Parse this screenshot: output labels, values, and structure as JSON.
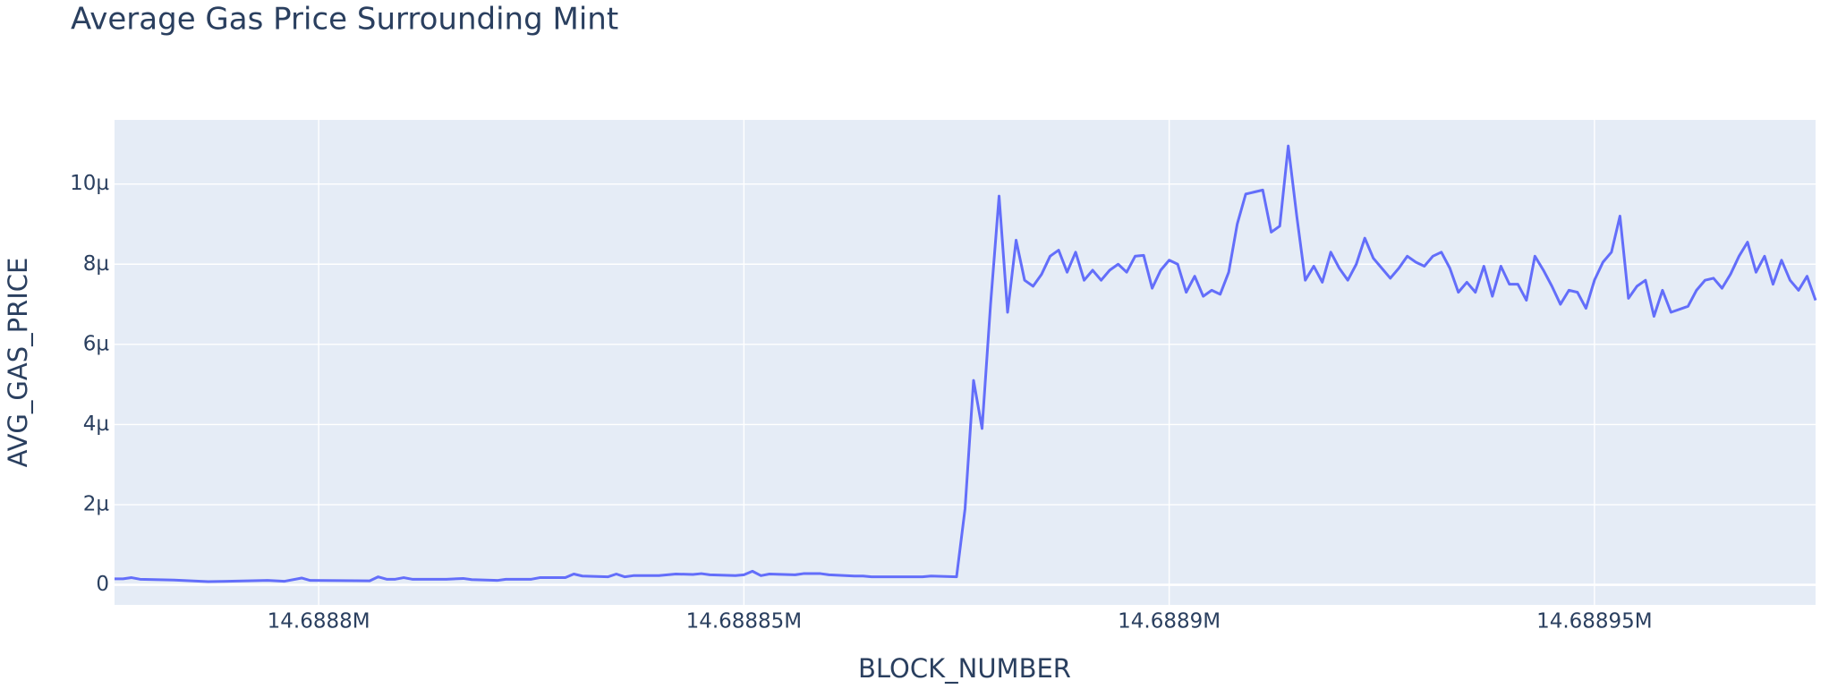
{
  "chart_data": {
    "type": "line",
    "title": "Average Gas Price Surrounding Mint",
    "x_label": "BLOCK_NUMBER",
    "y_label": "AVG_GAS_PRICE",
    "x": [
      14688776,
      14688777,
      14688778,
      14688779,
      14688783,
      14688787,
      14688794,
      14688796,
      14688798,
      14688799,
      14688806,
      14688807,
      14688808,
      14688809,
      14688810,
      14688811,
      14688815,
      14688817,
      14688818,
      14688821,
      14688822,
      14688825,
      14688826,
      14688829,
      14688830,
      14688831,
      14688834,
      14688835,
      14688836,
      14688837,
      14688840,
      14688842,
      14688844,
      14688845,
      14688846,
      14688849,
      14688850,
      14688851,
      14688852,
      14688853,
      14688856,
      14688857,
      14688859,
      14688860,
      14688863,
      14688864,
      14688865,
      14688866,
      14688871,
      14688872,
      14688875,
      14688876,
      14688877,
      14688878,
      14688879,
      14688880,
      14688881,
      14688882,
      14688883,
      14688884,
      14688885,
      14688886,
      14688887,
      14688888,
      14688889,
      14688890,
      14688891,
      14688892,
      14688893,
      14688894,
      14688895,
      14688896,
      14688897,
      14688898,
      14688899,
      14688900,
      14688901,
      14688902,
      14688903,
      14688904,
      14688905,
      14688906,
      14688907,
      14688908,
      14688909,
      14688910,
      14688911,
      14688912,
      14688913,
      14688914,
      14688915,
      14688916,
      14688917,
      14688918,
      14688919,
      14688920,
      14688921,
      14688922,
      14688923,
      14688924,
      14688925,
      14688926,
      14688927,
      14688928,
      14688929,
      14688930,
      14688931,
      14688932,
      14688933,
      14688934,
      14688935,
      14688936,
      14688937,
      14688938,
      14688939,
      14688940,
      14688941,
      14688942,
      14688943,
      14688944,
      14688945,
      14688946,
      14688947,
      14688948,
      14688949,
      14688950,
      14688951,
      14688952,
      14688953,
      14688954,
      14688955,
      14688956,
      14688957,
      14688958,
      14688959,
      14688961,
      14688962,
      14688963,
      14688964,
      14688965,
      14688966,
      14688967,
      14688968,
      14688969,
      14688970,
      14688971,
      14688972,
      14688973,
      14688974,
      14688975,
      14688976
    ],
    "series": [
      {
        "name": "AVG_GAS_PRICE",
        "color": "#636efa",
        "values": [
          1.5e-07,
          1.5e-07,
          1.8e-07,
          1.4e-07,
          1.2e-07,
          8e-08,
          1.1e-07,
          9e-08,
          1.7e-07,
          1.1e-07,
          1e-07,
          2e-07,
          1.4e-07,
          1.4e-07,
          1.8e-07,
          1.4e-07,
          1.4e-07,
          1.6e-07,
          1.3e-07,
          1.1e-07,
          1.4e-07,
          1.4e-07,
          1.8e-07,
          1.8e-07,
          2.7e-07,
          2.2e-07,
          2e-07,
          2.7e-07,
          2e-07,
          2.3e-07,
          2.3e-07,
          2.7e-07,
          2.6e-07,
          2.8e-07,
          2.5e-07,
          2.3e-07,
          2.5e-07,
          3.4e-07,
          2.3e-07,
          2.7e-07,
          2.5e-07,
          2.8e-07,
          2.8e-07,
          2.5e-07,
          2.2e-07,
          2.2e-07,
          2e-07,
          2e-07,
          2e-07,
          2.2e-07,
          2e-07,
          1.9e-06,
          5.1e-06,
          3.9e-06,
          7e-06,
          9.7e-06,
          6.8e-06,
          8.6e-06,
          7.6e-06,
          7.45e-06,
          7.75e-06,
          8.2e-06,
          8.35e-06,
          7.8e-06,
          8.3e-06,
          7.6e-06,
          7.85e-06,
          7.6e-06,
          7.85e-06,
          8e-06,
          7.8e-06,
          8.2e-06,
          8.22e-06,
          7.4e-06,
          7.85e-06,
          8.1e-06,
          8e-06,
          7.3e-06,
          7.7e-06,
          7.2e-06,
          7.35e-06,
          7.25e-06,
          7.8e-06,
          9e-06,
          9.75e-06,
          9.8e-06,
          9.85e-06,
          8.8e-06,
          8.95e-06,
          1.095e-05,
          9.2e-06,
          7.6e-06,
          7.95e-06,
          7.55e-06,
          8.3e-06,
          7.9e-06,
          7.6e-06,
          8e-06,
          8.65e-06,
          8.15e-06,
          7.9e-06,
          7.65e-06,
          7.9e-06,
          8.2e-06,
          8.05e-06,
          7.95e-06,
          8.2e-06,
          8.3e-06,
          7.9e-06,
          7.3e-06,
          7.55e-06,
          7.3e-06,
          7.95e-06,
          7.2e-06,
          7.95e-06,
          7.5e-06,
          7.5e-06,
          7.1e-06,
          8.2e-06,
          7.85e-06,
          7.45e-06,
          7e-06,
          7.35e-06,
          7.3e-06,
          6.9e-06,
          7.6e-06,
          8.05e-06,
          8.3e-06,
          9.2e-06,
          7.15e-06,
          7.45e-06,
          7.6e-06,
          6.7e-06,
          7.35e-06,
          6.8e-06,
          6.95e-06,
          7.35e-06,
          7.6e-06,
          7.65e-06,
          7.4e-06,
          7.75e-06,
          8.2e-06,
          8.55e-06,
          7.8e-06,
          8.2e-06,
          7.5e-06,
          8.1e-06,
          7.6e-06,
          7.35e-06,
          7.7e-06,
          7.1e-06
        ]
      }
    ],
    "xlim": [
      14688776,
      14688976
    ],
    "xticks": [
      {
        "value": 14688800,
        "label": "14.6888M"
      },
      {
        "value": 14688850,
        "label": "14.68885M"
      },
      {
        "value": 14688900,
        "label": "14.6889M"
      },
      {
        "value": 14688950,
        "label": "14.68895M"
      }
    ],
    "ylim": [
      -5e-07,
      1.16e-05
    ],
    "yticks": [
      0,
      {
        "value": 2e-06,
        "label": "2µ"
      },
      {
        "value": 4e-06,
        "label": "4µ"
      },
      {
        "value": 6e-06,
        "label": "6µ"
      },
      {
        "value": 8e-06,
        "label": "8µ"
      },
      {
        "value": 1e-05,
        "label": "10µ"
      }
    ],
    "grid": true
  }
}
